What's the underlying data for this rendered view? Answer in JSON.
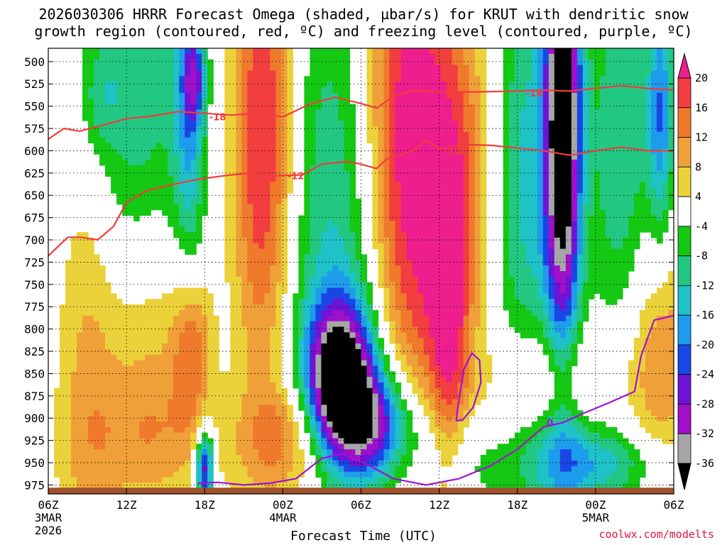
{
  "page": {
    "title_line1": "2026030306 HRRR Forecast Omega (shaded, µbar/s) for KRUT with dendritic snow",
    "title_line2": "growth region (contoured, red, ºC) and freezing level (contoured, purple, ºC)",
    "xlabel": "Forecast Time (UTC)",
    "credit": "coolwx.com/modelts"
  },
  "chart_data": {
    "type": "heatmap",
    "x_range_hours_from_init": [
      0,
      48
    ],
    "x_ticks": [
      {
        "hour": 0,
        "label": "06Z",
        "sub1": "3MAR",
        "sub2": "2026"
      },
      {
        "hour": 6,
        "label": "12Z"
      },
      {
        "hour": 12,
        "label": "18Z"
      },
      {
        "hour": 18,
        "label": "00Z",
        "sub1": "4MAR"
      },
      {
        "hour": 24,
        "label": "06Z"
      },
      {
        "hour": 30,
        "label": "12Z"
      },
      {
        "hour": 36,
        "label": "18Z"
      },
      {
        "hour": 42,
        "label": "00Z",
        "sub1": "5MAR"
      },
      {
        "hour": 48,
        "label": "06Z"
      }
    ],
    "y_axis": "pressure (mb)",
    "y_range": [
      985,
      485
    ],
    "y_ticks": [
      500,
      525,
      550,
      575,
      600,
      625,
      650,
      675,
      700,
      725,
      750,
      775,
      800,
      825,
      850,
      875,
      900,
      925,
      950,
      975
    ],
    "omega_levels": [
      20,
      16,
      12,
      8,
      4,
      -4,
      -8,
      -12,
      -16,
      -20,
      -24,
      -28,
      -32,
      -36
    ],
    "colorbar": [
      {
        "lo": 20,
        "hi": 24,
        "color": "#ee1e8e"
      },
      {
        "lo": 16,
        "hi": 20,
        "color": "#f23e3e"
      },
      {
        "lo": 12,
        "hi": 16,
        "color": "#f07a2c"
      },
      {
        "lo": 8,
        "hi": 12,
        "color": "#f0a038"
      },
      {
        "lo": 4,
        "hi": 8,
        "color": "#ecd23a"
      },
      {
        "lo": -4,
        "hi": 4,
        "color": "#ffffff"
      },
      {
        "lo": -8,
        "hi": -4,
        "color": "#14c814"
      },
      {
        "lo": -12,
        "hi": -8,
        "color": "#22c882"
      },
      {
        "lo": -16,
        "hi": -12,
        "color": "#1ec2c8"
      },
      {
        "lo": -20,
        "hi": -16,
        "color": "#1e9cec"
      },
      {
        "lo": -24,
        "hi": -20,
        "color": "#1a46e6"
      },
      {
        "lo": -28,
        "hi": -24,
        "color": "#6e14d6"
      },
      {
        "lo": -32,
        "hi": -28,
        "color": "#a010c8"
      },
      {
        "lo": -36,
        "hi": -32,
        "color": "#a6a6a6"
      },
      {
        "lo": -40,
        "hi": -36,
        "color": "#000000"
      }
    ],
    "omega_blobs": [
      {
        "x": 3.0,
        "p": 830,
        "rx": 2.5,
        "rp": 320,
        "peak": 10
      },
      {
        "x": 7.5,
        "p": 820,
        "rx": 3.5,
        "rp": 180,
        "peak": 12
      },
      {
        "x": 11.0,
        "p": 820,
        "rx": 1.5,
        "rp": 90,
        "peak": 15
      },
      {
        "x": 8.5,
        "p": 925,
        "rx": 6.0,
        "rp": 70,
        "peak": 6
      },
      {
        "x": 6.5,
        "p": 590,
        "rx": 4.5,
        "rp": 280,
        "peak": -12
      },
      {
        "x": 4.0,
        "p": 540,
        "rx": 1.6,
        "rp": 60,
        "peak": -7
      },
      {
        "x": 11.2,
        "p": 520,
        "rx": 0.8,
        "rp": 50,
        "peak": -16
      },
      {
        "x": 10.8,
        "p": 560,
        "rx": 1.2,
        "rp": 200,
        "peak": -14
      },
      {
        "x": 12.0,
        "p": 955,
        "rx": 0.7,
        "rp": 45,
        "peak": -30
      },
      {
        "x": 16.5,
        "p": 590,
        "rx": 2.4,
        "rp": 280,
        "peak": 22
      },
      {
        "x": 22.5,
        "p": 700,
        "rx": 4.5,
        "rp": 320,
        "peak": -14
      },
      {
        "x": 19.0,
        "p": 940,
        "rx": 4.0,
        "rp": 55,
        "peak": 12
      },
      {
        "x": 18.5,
        "p": 890,
        "rx": 3.0,
        "rp": 40,
        "peak": 5
      },
      {
        "x": 22.5,
        "p": 856,
        "rx": 2.6,
        "rp": 85,
        "peak": -40
      },
      {
        "x": 25.0,
        "p": 910,
        "rx": 3.2,
        "rp": 60,
        "peak": -26
      },
      {
        "x": 27.5,
        "p": 600,
        "rx": 3.6,
        "rp": 320,
        "peak": 26
      },
      {
        "x": 30.8,
        "p": 810,
        "rx": 1.6,
        "rp": 200,
        "peak": 14
      },
      {
        "x": 32.0,
        "p": 620,
        "rx": 3.0,
        "rp": 200,
        "peak": 10
      },
      {
        "x": 31.5,
        "p": 945,
        "rx": 3.5,
        "rp": 60,
        "peak": -8
      },
      {
        "x": 36.5,
        "p": 630,
        "rx": 2.5,
        "rp": 250,
        "peak": -14
      },
      {
        "x": 39.5,
        "p": 570,
        "rx": 1.4,
        "rp": 260,
        "peak": -44
      },
      {
        "x": 39.5,
        "p": 940,
        "rx": 3.5,
        "rp": 70,
        "peak": -14
      },
      {
        "x": 38.8,
        "p": 870,
        "rx": 5.0,
        "rp": 70,
        "peak": 12
      },
      {
        "x": 44.0,
        "p": 595,
        "rx": 2.5,
        "rp": 230,
        "peak": -12
      },
      {
        "x": 47.0,
        "p": 560,
        "rx": 1.0,
        "rp": 150,
        "peak": -18
      },
      {
        "x": 47.0,
        "p": 830,
        "rx": 2.6,
        "rp": 150,
        "peak": 12
      },
      {
        "x": 43.5,
        "p": 950,
        "rx": 4.5,
        "rp": 40,
        "peak": -10
      }
    ],
    "contours": [
      {
        "name": "-18",
        "color": "#f03c3c",
        "label": "-18",
        "label_at": [
          [
            13.0,
            562
          ],
          [
            37.3,
            535
          ]
        ],
        "points": [
          [
            0,
            587
          ],
          [
            1.2,
            575
          ],
          [
            2.4,
            578
          ],
          [
            4,
            572
          ],
          [
            6,
            564
          ],
          [
            8,
            561
          ],
          [
            10,
            556
          ],
          [
            12,
            558
          ],
          [
            14,
            560
          ],
          [
            16,
            558
          ],
          [
            18,
            562
          ],
          [
            20,
            548
          ],
          [
            22,
            540
          ],
          [
            24,
            547
          ],
          [
            25.2,
            552
          ],
          [
            26.4,
            540
          ],
          [
            28,
            532
          ],
          [
            30,
            534
          ],
          [
            33,
            534
          ],
          [
            36,
            533
          ],
          [
            38,
            532
          ],
          [
            40,
            533
          ],
          [
            42,
            530
          ],
          [
            44,
            527
          ],
          [
            46,
            530
          ],
          [
            48,
            532
          ]
        ]
      },
      {
        "name": "-12",
        "color": "#f03c3c",
        "label": "-12",
        "label_at": [
          [
            19.0,
            628
          ],
          [
            31.0,
            601
          ]
        ],
        "points": [
          [
            0,
            718
          ],
          [
            1.5,
            697
          ],
          [
            2.5,
            697
          ],
          [
            3.8,
            700
          ],
          [
            5,
            685
          ],
          [
            6,
            658
          ],
          [
            7.5,
            645
          ],
          [
            9.5,
            638
          ],
          [
            11.5,
            632
          ],
          [
            13.5,
            628
          ],
          [
            15.5,
            625
          ],
          [
            17.5,
            628
          ],
          [
            19.5,
            627
          ],
          [
            21,
            615
          ],
          [
            23,
            612
          ],
          [
            24,
            615
          ],
          [
            25.2,
            620
          ],
          [
            26,
            609
          ],
          [
            28,
            600
          ],
          [
            29,
            588
          ],
          [
            30,
            598
          ],
          [
            32,
            593
          ],
          [
            34,
            594
          ],
          [
            36,
            597
          ],
          [
            38,
            600
          ],
          [
            40,
            605
          ],
          [
            42,
            600
          ],
          [
            44,
            596
          ],
          [
            46,
            600
          ],
          [
            48,
            600
          ]
        ]
      },
      {
        "name": "0",
        "color": "#9d13d6",
        "label": "0",
        "label_at": [
          [
            38.5,
            905
          ]
        ],
        "points": [
          [
            11.5,
            973
          ],
          [
            13,
            972
          ],
          [
            15,
            975
          ],
          [
            17,
            973
          ],
          [
            19,
            968
          ],
          [
            21,
            945
          ],
          [
            22.5,
            940
          ],
          [
            24.5,
            952
          ],
          [
            26.5,
            968
          ],
          [
            29,
            975
          ],
          [
            31.5,
            968
          ],
          [
            34,
            953
          ],
          [
            36,
            935
          ],
          [
            38,
            910
          ],
          [
            39.5,
            905
          ],
          [
            41,
            895
          ],
          [
            43,
            883
          ],
          [
            45,
            870
          ],
          [
            45.5,
            830
          ],
          [
            46.5,
            790
          ],
          [
            48,
            785
          ]
        ]
      },
      {
        "name": "0-closed",
        "color": "#9d13d6",
        "label": "",
        "points": [
          [
            31.3,
            903
          ],
          [
            31.5,
            880
          ],
          [
            31.9,
            845
          ],
          [
            32.5,
            827
          ],
          [
            33.1,
            835
          ],
          [
            33.2,
            860
          ],
          [
            32.6,
            888
          ],
          [
            31.8,
            902
          ],
          [
            31.3,
            903
          ]
        ]
      }
    ]
  }
}
